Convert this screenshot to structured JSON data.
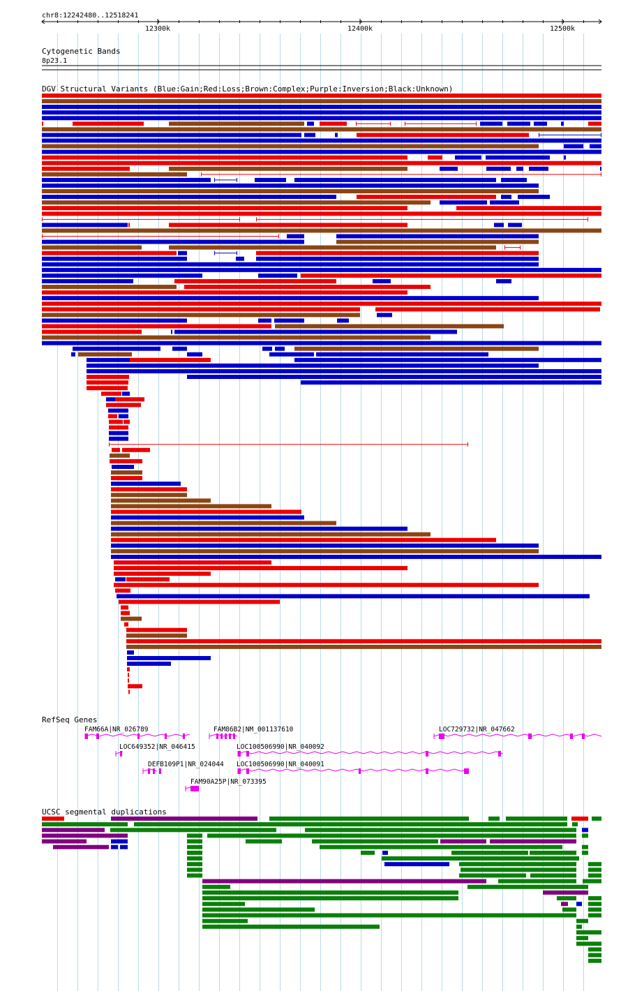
{
  "region": "chr8:12242480..12518241",
  "ruler": {
    "ticks": [
      {
        "pos": 12300000,
        "label": "12300k"
      },
      {
        "pos": 12400000,
        "label": "12400k"
      },
      {
        "pos": 12500000,
        "label": "12500k"
      }
    ]
  },
  "tracks": {
    "cytoband": {
      "title": "Cytogenetic Bands",
      "band": "8p23.1"
    },
    "dgv": {
      "title": "DGV Structural Variants (Blue:Gain;Red:Loss;Brown:Complex;Purple:Inversion;Black:Unknown)",
      "colors": {
        "gain": "#0000cc",
        "loss": "#ee0000",
        "complex": "#8b4513",
        "inversion": "#800080",
        "unknown": "#000000"
      }
    },
    "refseq": {
      "title": "RefSeq Genes",
      "color": "#ee00ee",
      "genes": [
        {
          "label": "FAM66A|NR_026789"
        },
        {
          "label": "FAM86B2|NM_001137610"
        },
        {
          "label": "LOC729732|NR_047662"
        },
        {
          "label": "LOC649352|NR_046415"
        },
        {
          "label": "LOC100506990|NR_040092"
        },
        {
          "label": "DEFB109P1|NR_024044"
        },
        {
          "label": "LOC100506990|NR_040091"
        },
        {
          "label": "FAM90A25P|NR_073395"
        }
      ]
    },
    "segdup": {
      "title": "UCSC segmental duplications",
      "colors": {
        "green": "#0a800a",
        "purple": "#800080",
        "blue": "#0000cc",
        "red": "#ee0000"
      }
    }
  }
}
